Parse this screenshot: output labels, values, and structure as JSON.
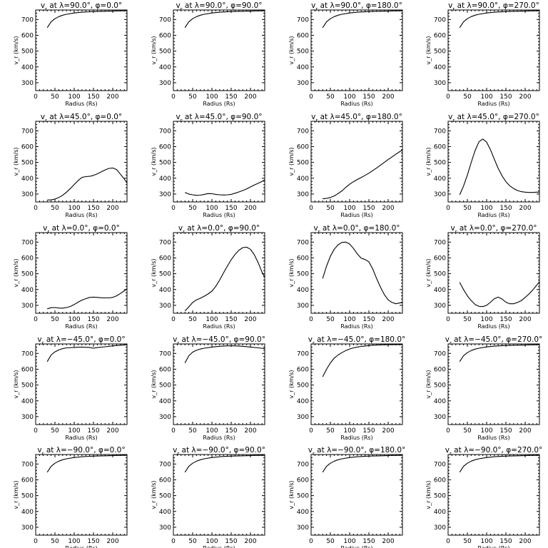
{
  "chart_data": [
    {
      "type": "line",
      "title": "v$_r$ at λ=90.0°, φ=0.0°",
      "title_parts": {
        "var": "v",
        "sub": "r",
        "lat": "90.0",
        "lon": "0.0"
      },
      "xlabel": "Radius (Rs)",
      "ylabel": "v_r (km/s)",
      "xlim": [
        0,
        237
      ],
      "ylim": [
        250,
        760
      ],
      "xticks": [
        0,
        50,
        100,
        150,
        200
      ],
      "yticks": [
        300,
        400,
        500,
        600,
        700
      ],
      "x": [
        30,
        40,
        50,
        60,
        70,
        80,
        100,
        120,
        150,
        180,
        210,
        237
      ],
      "y": [
        648,
        685,
        705,
        718,
        727,
        733,
        741,
        746,
        750,
        752,
        754,
        755
      ]
    },
    {
      "type": "line",
      "title": "",
      "title_parts": {
        "var": "v",
        "sub": "r",
        "lat": "90.0",
        "lon": "90.0"
      },
      "xlabel": "Radius (Rs)",
      "ylabel": "v_r (km/s)",
      "xlim": [
        0,
        237
      ],
      "ylim": [
        250,
        760
      ],
      "xticks": [
        0,
        50,
        100,
        150,
        200
      ],
      "yticks": [
        300,
        400,
        500,
        600,
        700
      ],
      "x": [
        30,
        40,
        50,
        60,
        70,
        80,
        100,
        120,
        150,
        180,
        210,
        237
      ],
      "y": [
        648,
        685,
        705,
        718,
        727,
        733,
        741,
        746,
        750,
        752,
        754,
        755
      ]
    },
    {
      "type": "line",
      "title": "",
      "title_parts": {
        "var": "v",
        "sub": "r",
        "lat": "90.0",
        "lon": "180.0"
      },
      "xlabel": "Radius (Rs)",
      "ylabel": "v_r (km/s)",
      "xlim": [
        0,
        237
      ],
      "ylim": [
        250,
        760
      ],
      "xticks": [
        0,
        50,
        100,
        150,
        200
      ],
      "yticks": [
        300,
        400,
        500,
        600,
        700
      ],
      "x": [
        30,
        40,
        50,
        60,
        70,
        80,
        100,
        120,
        150,
        180,
        210,
        237
      ],
      "y": [
        648,
        685,
        705,
        718,
        727,
        733,
        741,
        746,
        750,
        752,
        754,
        755
      ]
    },
    {
      "type": "line",
      "title": "",
      "title_parts": {
        "var": "v",
        "sub": "r",
        "lat": "90.0",
        "lon": "270.0"
      },
      "xlabel": "Radius (Rs)",
      "ylabel": "v_r (km/s)",
      "xlim": [
        0,
        237
      ],
      "ylim": [
        250,
        760
      ],
      "xticks": [
        0,
        50,
        100,
        150,
        200
      ],
      "yticks": [
        300,
        400,
        500,
        600,
        700
      ],
      "x": [
        30,
        40,
        50,
        60,
        70,
        80,
        100,
        120,
        150,
        180,
        210,
        237
      ],
      "y": [
        648,
        685,
        705,
        718,
        727,
        733,
        741,
        746,
        750,
        752,
        754,
        755
      ]
    },
    {
      "type": "line",
      "title": "",
      "title_parts": {
        "var": "v",
        "sub": "r",
        "lat": "45.0",
        "lon": "0.0"
      },
      "xlabel": "Radius (Rs)",
      "ylabel": "v_r (km/s)",
      "xlim": [
        0,
        237
      ],
      "ylim": [
        250,
        760
      ],
      "xticks": [
        0,
        50,
        100,
        150,
        200
      ],
      "yticks": [
        300,
        400,
        500,
        600,
        700
      ],
      "x": [
        30,
        40,
        50,
        60,
        70,
        80,
        90,
        100,
        110,
        120,
        130,
        140,
        150,
        160,
        170,
        180,
        190,
        200,
        210,
        220,
        230,
        237
      ],
      "y": [
        262,
        263,
        268,
        278,
        292,
        312,
        335,
        360,
        385,
        405,
        410,
        412,
        418,
        428,
        440,
        452,
        462,
        465,
        455,
        425,
        395,
        370
      ]
    },
    {
      "type": "line",
      "title": "",
      "title_parts": {
        "var": "v",
        "sub": "r",
        "lat": "45.0",
        "lon": "90.0"
      },
      "xlabel": "Radius (Rs)",
      "ylabel": "v_r (km/s)",
      "xlim": [
        0,
        237
      ],
      "ylim": [
        250,
        760
      ],
      "xticks": [
        0,
        50,
        100,
        150,
        200
      ],
      "yticks": [
        300,
        400,
        500,
        600,
        700
      ],
      "x": [
        30,
        40,
        50,
        60,
        70,
        80,
        90,
        100,
        110,
        120,
        130,
        140,
        150,
        160,
        170,
        180,
        190,
        200,
        210,
        220,
        230,
        237
      ],
      "y": [
        310,
        300,
        295,
        292,
        293,
        298,
        303,
        302,
        298,
        295,
        294,
        295,
        298,
        305,
        313,
        322,
        332,
        345,
        357,
        368,
        380,
        390
      ]
    },
    {
      "type": "line",
      "title": "",
      "title_parts": {
        "var": "v",
        "sub": "r",
        "lat": "45.0",
        "lon": "180.0"
      },
      "xlabel": "Radius (Rs)",
      "ylabel": "v_r (km/s)",
      "xlim": [
        0,
        237
      ],
      "ylim": [
        250,
        760
      ],
      "xticks": [
        0,
        50,
        100,
        150,
        200
      ],
      "yticks": [
        300,
        400,
        500,
        600,
        700
      ],
      "x": [
        30,
        40,
        50,
        60,
        70,
        80,
        90,
        100,
        110,
        120,
        130,
        140,
        150,
        160,
        170,
        180,
        190,
        200,
        210,
        220,
        230,
        237
      ],
      "y": [
        270,
        272,
        278,
        288,
        303,
        320,
        342,
        362,
        378,
        392,
        405,
        418,
        432,
        448,
        465,
        482,
        500,
        518,
        535,
        552,
        568,
        578
      ]
    },
    {
      "type": "line",
      "title": "",
      "title_parts": {
        "var": "v",
        "sub": "r",
        "lat": "45.0",
        "lon": "270.0"
      },
      "xlabel": "Radius (Rs)",
      "ylabel": "v_r (km/s)",
      "xlim": [
        0,
        237
      ],
      "ylim": [
        250,
        760
      ],
      "xticks": [
        0,
        50,
        100,
        150,
        200
      ],
      "yticks": [
        300,
        400,
        500,
        600,
        700
      ],
      "x": [
        30,
        40,
        50,
        60,
        70,
        80,
        90,
        100,
        110,
        120,
        130,
        140,
        150,
        160,
        170,
        180,
        190,
        200,
        210,
        220,
        230,
        237
      ],
      "y": [
        295,
        350,
        420,
        500,
        575,
        630,
        648,
        628,
        580,
        520,
        462,
        415,
        378,
        352,
        335,
        322,
        315,
        312,
        310,
        310,
        312,
        312
      ]
    },
    {
      "type": "line",
      "title": "",
      "title_parts": {
        "var": "v",
        "sub": "r",
        "lat": "0.0",
        "lon": "0.0"
      },
      "xlabel": "Radius (Rs)",
      "ylabel": "v_r (km/s)",
      "xlim": [
        0,
        237
      ],
      "ylim": [
        250,
        760
      ],
      "xticks": [
        0,
        50,
        100,
        150,
        200
      ],
      "yticks": [
        300,
        400,
        500,
        600,
        700
      ],
      "x": [
        30,
        40,
        50,
        60,
        70,
        80,
        90,
        100,
        110,
        120,
        130,
        140,
        150,
        160,
        170,
        180,
        190,
        200,
        210,
        220,
        230,
        237
      ],
      "y": [
        278,
        285,
        286,
        283,
        282,
        286,
        293,
        305,
        320,
        333,
        342,
        350,
        352,
        350,
        348,
        347,
        347,
        350,
        360,
        375,
        392,
        405
      ]
    },
    {
      "type": "line",
      "title": "",
      "title_parts": {
        "var": "v",
        "sub": "r",
        "lat": "0.0",
        "lon": "90.0"
      },
      "xlabel": "Radius (Rs)",
      "ylabel": "v_r (km/s)",
      "xlim": [
        0,
        237
      ],
      "ylim": [
        250,
        760
      ],
      "xticks": [
        0,
        50,
        100,
        150,
        200
      ],
      "yticks": [
        300,
        400,
        500,
        600,
        700
      ],
      "x": [
        30,
        40,
        50,
        60,
        70,
        80,
        90,
        100,
        110,
        120,
        130,
        140,
        150,
        160,
        170,
        180,
        190,
        200,
        210,
        220,
        230,
        237
      ],
      "y": [
        265,
        290,
        318,
        335,
        345,
        358,
        372,
        390,
        420,
        460,
        505,
        548,
        588,
        622,
        648,
        665,
        668,
        655,
        620,
        570,
        510,
        478
      ]
    },
    {
      "type": "line",
      "title": "",
      "title_parts": {
        "var": "v",
        "sub": "r",
        "lat": "0.0",
        "lon": "180.0"
      },
      "xlabel": "Radius (Rs)",
      "ylabel": "v_r (km/s)",
      "xlim": [
        0,
        237
      ],
      "ylim": [
        250,
        760
      ],
      "xticks": [
        0,
        50,
        100,
        150,
        200
      ],
      "yticks": [
        300,
        400,
        500,
        600,
        700
      ],
      "x": [
        30,
        40,
        50,
        60,
        70,
        80,
        90,
        100,
        110,
        120,
        130,
        140,
        150,
        160,
        170,
        180,
        190,
        200,
        210,
        220,
        230,
        237
      ],
      "y": [
        470,
        548,
        610,
        655,
        683,
        698,
        700,
        688,
        660,
        625,
        598,
        590,
        575,
        530,
        470,
        415,
        368,
        335,
        318,
        310,
        315,
        318
      ]
    },
    {
      "type": "line",
      "title": "",
      "title_parts": {
        "var": "v",
        "sub": "r",
        "lat": "0.0",
        "lon": "270.0"
      },
      "xlabel": "Radius (Rs)",
      "ylabel": "v_r (km/s)",
      "xlim": [
        0,
        237
      ],
      "ylim": [
        250,
        760
      ],
      "xticks": [
        0,
        50,
        100,
        150,
        200
      ],
      "yticks": [
        300,
        400,
        500,
        600,
        700
      ],
      "x": [
        30,
        40,
        50,
        60,
        70,
        80,
        90,
        100,
        110,
        120,
        130,
        140,
        150,
        160,
        170,
        180,
        190,
        200,
        210,
        220,
        230,
        237
      ],
      "y": [
        445,
        400,
        360,
        330,
        305,
        294,
        292,
        300,
        320,
        342,
        352,
        340,
        320,
        310,
        310,
        318,
        330,
        350,
        372,
        398,
        428,
        450
      ]
    },
    {
      "type": "line",
      "title": "",
      "title_parts": {
        "var": "v",
        "sub": "r",
        "lat": "−45.0",
        "lon": "0.0"
      },
      "xlabel": "Radius (Rs)",
      "ylabel": "v_r (km/s)",
      "xlim": [
        0,
        237
      ],
      "ylim": [
        250,
        760
      ],
      "xticks": [
        0,
        50,
        100,
        150,
        200
      ],
      "yticks": [
        300,
        400,
        500,
        600,
        700
      ],
      "x": [
        30,
        40,
        50,
        60,
        70,
        80,
        100,
        120,
        140,
        150,
        160,
        180,
        200,
        220,
        237
      ],
      "y": [
        648,
        690,
        710,
        722,
        730,
        735,
        738,
        740,
        738,
        733,
        737,
        742,
        748,
        752,
        755
      ]
    },
    {
      "type": "line",
      "title": "",
      "title_parts": {
        "var": "v",
        "sub": "r",
        "lat": "−45.0",
        "lon": "90.0"
      },
      "xlabel": "Radius (Rs)",
      "ylabel": "v_r (km/s)",
      "xlim": [
        0,
        237
      ],
      "ylim": [
        250,
        760
      ],
      "xticks": [
        0,
        50,
        100,
        150,
        200
      ],
      "yticks": [
        300,
        400,
        500,
        600,
        700
      ],
      "x": [
        30,
        40,
        50,
        60,
        70,
        80,
        100,
        120,
        140,
        160,
        180,
        200,
        220,
        237
      ],
      "y": [
        640,
        685,
        708,
        720,
        728,
        733,
        740,
        745,
        748,
        748,
        745,
        740,
        735,
        730
      ]
    },
    {
      "type": "line",
      "title": "",
      "title_parts": {
        "var": "v",
        "sub": "r",
        "lat": "−45.0",
        "lon": "180.0"
      },
      "xlabel": "Radius (Rs)",
      "ylabel": "v_r (km/s)",
      "xlim": [
        0,
        237
      ],
      "ylim": [
        250,
        760
      ],
      "xticks": [
        0,
        50,
        100,
        150,
        200
      ],
      "yticks": [
        300,
        400,
        500,
        600,
        700
      ],
      "x": [
        30,
        40,
        50,
        60,
        70,
        80,
        90,
        100,
        110,
        120,
        130,
        140,
        150,
        160,
        180,
        200,
        220,
        237
      ],
      "y": [
        552,
        600,
        640,
        670,
        690,
        705,
        718,
        728,
        735,
        740,
        744,
        747,
        750,
        752,
        754,
        755,
        756,
        756
      ]
    },
    {
      "type": "line",
      "title": "",
      "title_parts": {
        "var": "v",
        "sub": "r",
        "lat": "−45.0",
        "lon": "270.0"
      },
      "xlabel": "Radius (Rs)",
      "ylabel": "v_r (km/s)",
      "xlim": [
        0,
        237
      ],
      "ylim": [
        250,
        760
      ],
      "xticks": [
        0,
        50,
        100,
        150,
        200
      ],
      "yticks": [
        300,
        400,
        500,
        600,
        700
      ],
      "x": [
        30,
        40,
        50,
        60,
        70,
        80,
        100,
        120,
        150,
        180,
        210,
        237
      ],
      "y": [
        648,
        685,
        705,
        718,
        727,
        733,
        741,
        746,
        750,
        752,
        754,
        755
      ]
    },
    {
      "type": "line",
      "title": "",
      "title_parts": {
        "var": "v",
        "sub": "r",
        "lat": "−90.0",
        "lon": "0.0"
      },
      "xlabel": "Radius (Rs)",
      "ylabel": "v_r (km/s)",
      "xlim": [
        0,
        237
      ],
      "ylim": [
        250,
        760
      ],
      "xticks": [
        0,
        50,
        100,
        150,
        200
      ],
      "yticks": [
        300,
        400,
        500,
        600,
        700
      ],
      "x": [
        30,
        40,
        50,
        60,
        70,
        80,
        100,
        120,
        150,
        180,
        210,
        237
      ],
      "y": [
        648,
        685,
        705,
        718,
        727,
        733,
        741,
        746,
        750,
        752,
        754,
        755
      ]
    },
    {
      "type": "line",
      "title": "",
      "title_parts": {
        "var": "v",
        "sub": "r",
        "lat": "−90.0",
        "lon": "90.0"
      },
      "xlabel": "Radius (Rs)",
      "ylabel": "v_r (km/s)",
      "xlim": [
        0,
        237
      ],
      "ylim": [
        250,
        760
      ],
      "xticks": [
        0,
        50,
        100,
        150,
        200
      ],
      "yticks": [
        300,
        400,
        500,
        600,
        700
      ],
      "x": [
        30,
        40,
        50,
        60,
        70,
        80,
        100,
        120,
        150,
        180,
        210,
        237
      ],
      "y": [
        648,
        685,
        705,
        718,
        727,
        733,
        741,
        746,
        750,
        752,
        754,
        755
      ]
    },
    {
      "type": "line",
      "title": "",
      "title_parts": {
        "var": "v",
        "sub": "r",
        "lat": "−90.0",
        "lon": "180.0"
      },
      "xlabel": "Radius (Rs)",
      "ylabel": "v_r (km/s)",
      "xlim": [
        0,
        237
      ],
      "ylim": [
        250,
        760
      ],
      "xticks": [
        0,
        50,
        100,
        150,
        200
      ],
      "yticks": [
        300,
        400,
        500,
        600,
        700
      ],
      "x": [
        30,
        40,
        50,
        60,
        70,
        80,
        100,
        120,
        150,
        180,
        210,
        237
      ],
      "y": [
        648,
        685,
        705,
        718,
        727,
        733,
        741,
        746,
        750,
        752,
        754,
        755
      ]
    },
    {
      "type": "line",
      "title": "",
      "title_parts": {
        "var": "v",
        "sub": "r",
        "lat": "−90.0",
        "lon": "270.0"
      },
      "xlabel": "Radius (Rs)",
      "ylabel": "v_r (km/s)",
      "xlim": [
        0,
        237
      ],
      "ylim": [
        250,
        760
      ],
      "xticks": [
        0,
        50,
        100,
        150,
        200
      ],
      "yticks": [
        300,
        400,
        500,
        600,
        700
      ],
      "x": [
        30,
        40,
        50,
        60,
        70,
        80,
        100,
        120,
        150,
        180,
        210,
        237
      ],
      "y": [
        648,
        685,
        705,
        718,
        727,
        733,
        741,
        746,
        750,
        752,
        754,
        755
      ]
    }
  ]
}
